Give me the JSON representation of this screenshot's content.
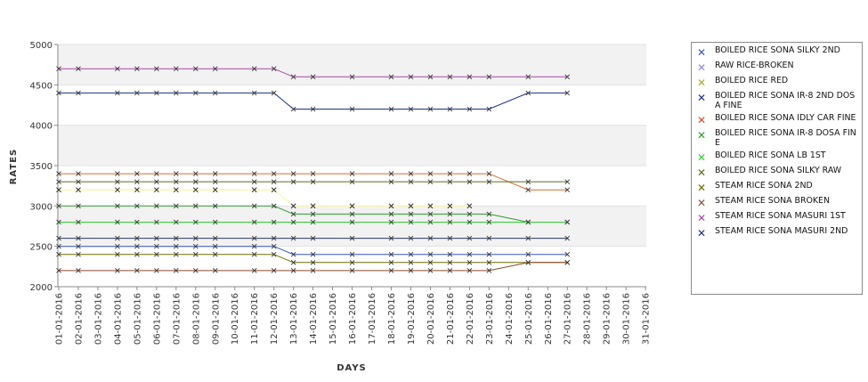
{
  "chart_data": {
    "type": "line",
    "title": "",
    "xlabel": "DAYS",
    "ylabel": "RATES",
    "ylim": [
      2000,
      5000
    ],
    "yticks": [
      2000,
      2500,
      3000,
      3500,
      4000,
      4500,
      5000
    ],
    "grid": "alternating horizontal bands",
    "legend_position": "right",
    "categories": [
      "01-01-2016",
      "02-01-2016",
      "03-01-2016",
      "04-01-2016",
      "05-01-2016",
      "06-01-2016",
      "07-01-2016",
      "08-01-2016",
      "09-01-2016",
      "10-01-2016",
      "11-01-2016",
      "12-01-2016",
      "13-01-2016",
      "14-01-2016",
      "15-01-2016",
      "16-01-2016",
      "17-01-2016",
      "18-01-2016",
      "19-01-2016",
      "20-01-2016",
      "21-01-2016",
      "22-01-2016",
      "23-01-2016",
      "24-01-2016",
      "25-01-2016",
      "26-01-2016",
      "27-01-2016",
      "28-01-2016",
      "29-01-2016",
      "30-01-2016",
      "31-01-2016"
    ],
    "series": [
      {
        "name": "BOILED RICE SONA SILKY 2ND",
        "color": "#3355bb",
        "values": [
          2500,
          2500,
          null,
          2500,
          2500,
          2500,
          2500,
          2500,
          2500,
          null,
          2500,
          2500,
          2400,
          2400,
          null,
          2400,
          null,
          2400,
          2400,
          2400,
          2400,
          2400,
          2400,
          null,
          2400,
          null,
          2400,
          null,
          null,
          null,
          null
        ]
      },
      {
        "name": "RAW RICE-BROKEN",
        "color": "#ccccff",
        "values": [
          3200,
          3200,
          null,
          3200,
          3200,
          3200,
          3200,
          3200,
          3200,
          null,
          3200,
          3200,
          3000,
          3000,
          null,
          3000,
          null,
          3000,
          3000,
          3000,
          3000,
          3000,
          null,
          null,
          null,
          null,
          null,
          null,
          null,
          null,
          null
        ]
      },
      {
        "name": "BOILED RICE RED",
        "color": "#ffff99",
        "values": [
          3200,
          3200,
          null,
          3200,
          3200,
          3200,
          3200,
          3200,
          3200,
          null,
          3200,
          3200,
          3000,
          3000,
          null,
          3000,
          null,
          3000,
          3000,
          3000,
          3000,
          3000,
          null,
          null,
          null,
          null,
          null,
          null,
          null,
          null,
          null
        ]
      },
      {
        "name": "BOILED RICE SONA  IR-8 2ND DOSA FINE",
        "color": "#1a2e8a",
        "values": [
          4400,
          4400,
          null,
          4400,
          4400,
          4400,
          4400,
          4400,
          4400,
          null,
          4400,
          4400,
          4200,
          4200,
          null,
          4200,
          null,
          4200,
          4200,
          4200,
          4200,
          4200,
          4200,
          null,
          4400,
          null,
          4400,
          null,
          null,
          null,
          null
        ]
      },
      {
        "name": "BOILED RICE SONA IDLY CAR FINE",
        "color": "#d86a2c",
        "values": [
          3400,
          3400,
          null,
          3400,
          3400,
          3400,
          3400,
          3400,
          3400,
          null,
          3400,
          3400,
          3400,
          3400,
          null,
          3400,
          null,
          3400,
          3400,
          3400,
          3400,
          3400,
          3400,
          null,
          3200,
          null,
          3200,
          null,
          null,
          null,
          null
        ]
      },
      {
        "name": "BOILED RICE SONA IR-8 DOSA FINE",
        "color": "#2e9a2e",
        "values": [
          3000,
          3000,
          null,
          3000,
          3000,
          3000,
          3000,
          3000,
          3000,
          null,
          3000,
          3000,
          2900,
          2900,
          null,
          2900,
          null,
          2900,
          2900,
          2900,
          2900,
          2900,
          2900,
          null,
          2800,
          null,
          2800,
          null,
          null,
          null,
          null
        ]
      },
      {
        "name": "BOILED RICE SONA LB 1ST",
        "color": "#33cc33",
        "values": [
          2800,
          2800,
          null,
          2800,
          2800,
          2800,
          2800,
          2800,
          2800,
          null,
          2800,
          2800,
          2800,
          2800,
          null,
          2800,
          null,
          2800,
          2800,
          2800,
          2800,
          2800,
          2800,
          null,
          2800,
          null,
          2800,
          null,
          null,
          null,
          null
        ]
      },
      {
        "name": "BOILED RICE SONA SILKY RAW",
        "color": "#5a6b1a",
        "values": [
          3300,
          3300,
          null,
          3300,
          3300,
          3300,
          3300,
          3300,
          3300,
          null,
          3300,
          3300,
          3300,
          3300,
          null,
          3300,
          null,
          3300,
          3300,
          3300,
          3300,
          3300,
          3300,
          null,
          3300,
          null,
          3300,
          null,
          null,
          null,
          null
        ]
      },
      {
        "name": "STEAM RICE SONA 2ND",
        "color": "#6b6b00",
        "values": [
          2400,
          2400,
          null,
          2400,
          2400,
          2400,
          2400,
          2400,
          2400,
          null,
          2400,
          2400,
          2300,
          2300,
          null,
          2300,
          null,
          2300,
          2300,
          2300,
          2300,
          2300,
          2300,
          null,
          2300,
          null,
          2300,
          null,
          null,
          null,
          null
        ]
      },
      {
        "name": "STEAM RICE SONA BROKEN",
        "color": "#8a4a2a",
        "values": [
          2200,
          2200,
          null,
          2200,
          2200,
          2200,
          2200,
          2200,
          2200,
          null,
          2200,
          2200,
          2200,
          2200,
          null,
          2200,
          null,
          2200,
          2200,
          2200,
          2200,
          2200,
          2200,
          null,
          2300,
          null,
          2300,
          null,
          null,
          null,
          null
        ]
      },
      {
        "name": "STEAM RICE SONA MASURI 1ST",
        "color": "#aa44aa",
        "values": [
          4700,
          4700,
          null,
          4700,
          4700,
          4700,
          4700,
          4700,
          4700,
          null,
          4700,
          4700,
          4600,
          4600,
          null,
          4600,
          null,
          4600,
          4600,
          4600,
          4600,
          4600,
          4600,
          null,
          4600,
          null,
          4600,
          null,
          null,
          null,
          null
        ]
      },
      {
        "name": "STEAM RICE SONA MASURI 2ND",
        "color": "#2a3a6a",
        "values": [
          2600,
          2600,
          null,
          2600,
          2600,
          2600,
          2600,
          2600,
          2600,
          null,
          2600,
          2600,
          2600,
          2600,
          null,
          2600,
          null,
          2600,
          2600,
          2600,
          2600,
          2600,
          2600,
          null,
          2600,
          null,
          2600,
          null,
          null,
          null,
          null
        ]
      }
    ]
  },
  "legend": {
    "items": [
      {
        "label": " BOILED RICE SONA SILKY 2ND",
        "color": "#3355bb"
      },
      {
        "label": " RAW RICE-BROKEN",
        "color": "#8888dd"
      },
      {
        "label": "BOILED RICE RED",
        "color": "#aaaa22"
      },
      {
        "label": "BOILED RICE SONA  IR-8 2ND DOSA FINE",
        "color": "#1a2e8a"
      },
      {
        "label": "BOILED RICE SONA IDLY CAR FINE",
        "color": "#d84a2c"
      },
      {
        "label": "BOILED RICE SONA IR-8 DOSA FINE",
        "color": "#2e9a2e"
      },
      {
        "label": "BOILED RICE SONA LB 1ST",
        "color": "#33cc33"
      },
      {
        "label": "BOILED RICE SONA SILKY RAW",
        "color": "#5a6b1a"
      },
      {
        "label": "STEAM RICE SONA 2ND",
        "color": "#6b6b00"
      },
      {
        "label": "STEAM RICE SONA BROKEN",
        "color": "#8a4a2a"
      },
      {
        "label": "STEAM RICE SONA MASURI 1ST",
        "color": "#aa44aa"
      },
      {
        "label": "STEAM RICE SONA MASURI 2ND",
        "color": "#1a2e8a"
      }
    ]
  }
}
